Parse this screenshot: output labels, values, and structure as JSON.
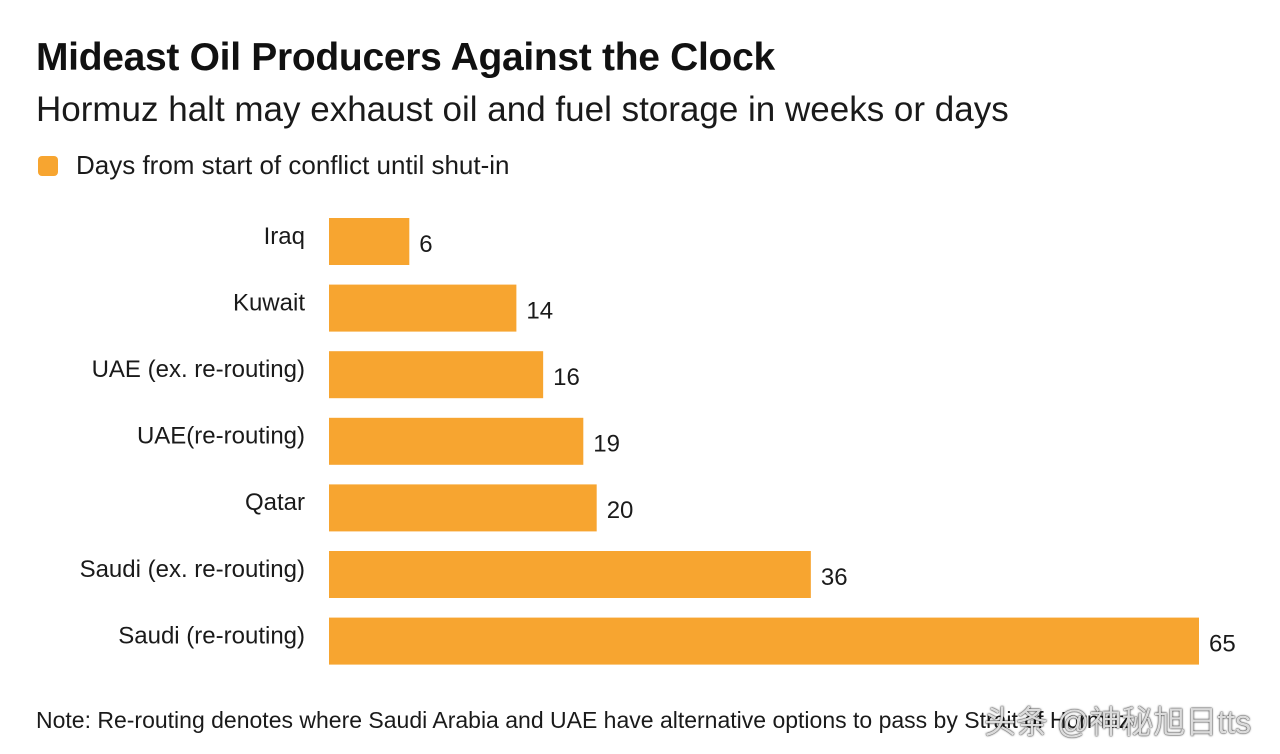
{
  "title": "Mideast Oil Producers Against the Clock",
  "subtitle": "Hormuz halt may exhaust oil and fuel storage in weeks or days",
  "legend": {
    "label": "Days from start of conflict until shut-in"
  },
  "colors": {
    "bar": "#f7a530",
    "text": "#1a1a1a"
  },
  "chart_data": {
    "type": "bar",
    "orientation": "horizontal",
    "title": "Mideast Oil Producers Against the Clock",
    "subtitle": "Hormuz halt may exhaust oil and fuel storage in weeks or days",
    "categories": [
      "Iraq",
      "Kuwait",
      "UAE (ex. re-routing)",
      "UAE(re-routing)",
      "Qatar",
      "Saudi (ex. re-routing)",
      "Saudi (re-routing)"
    ],
    "series": [
      {
        "name": "Days from start of conflict until shut-in",
        "values": [
          6,
          14,
          16,
          19,
          20,
          36,
          65
        ]
      }
    ],
    "xlabel": "",
    "ylabel": "",
    "xlim": [
      0,
      65
    ],
    "grid": false,
    "legend_position": "top-left"
  },
  "note": "Note: Re-routing denotes where Saudi Arabia and UAE have alternative options to pass by Strait of Hormuz",
  "watermark": "头条 @神秘旭日tts"
}
